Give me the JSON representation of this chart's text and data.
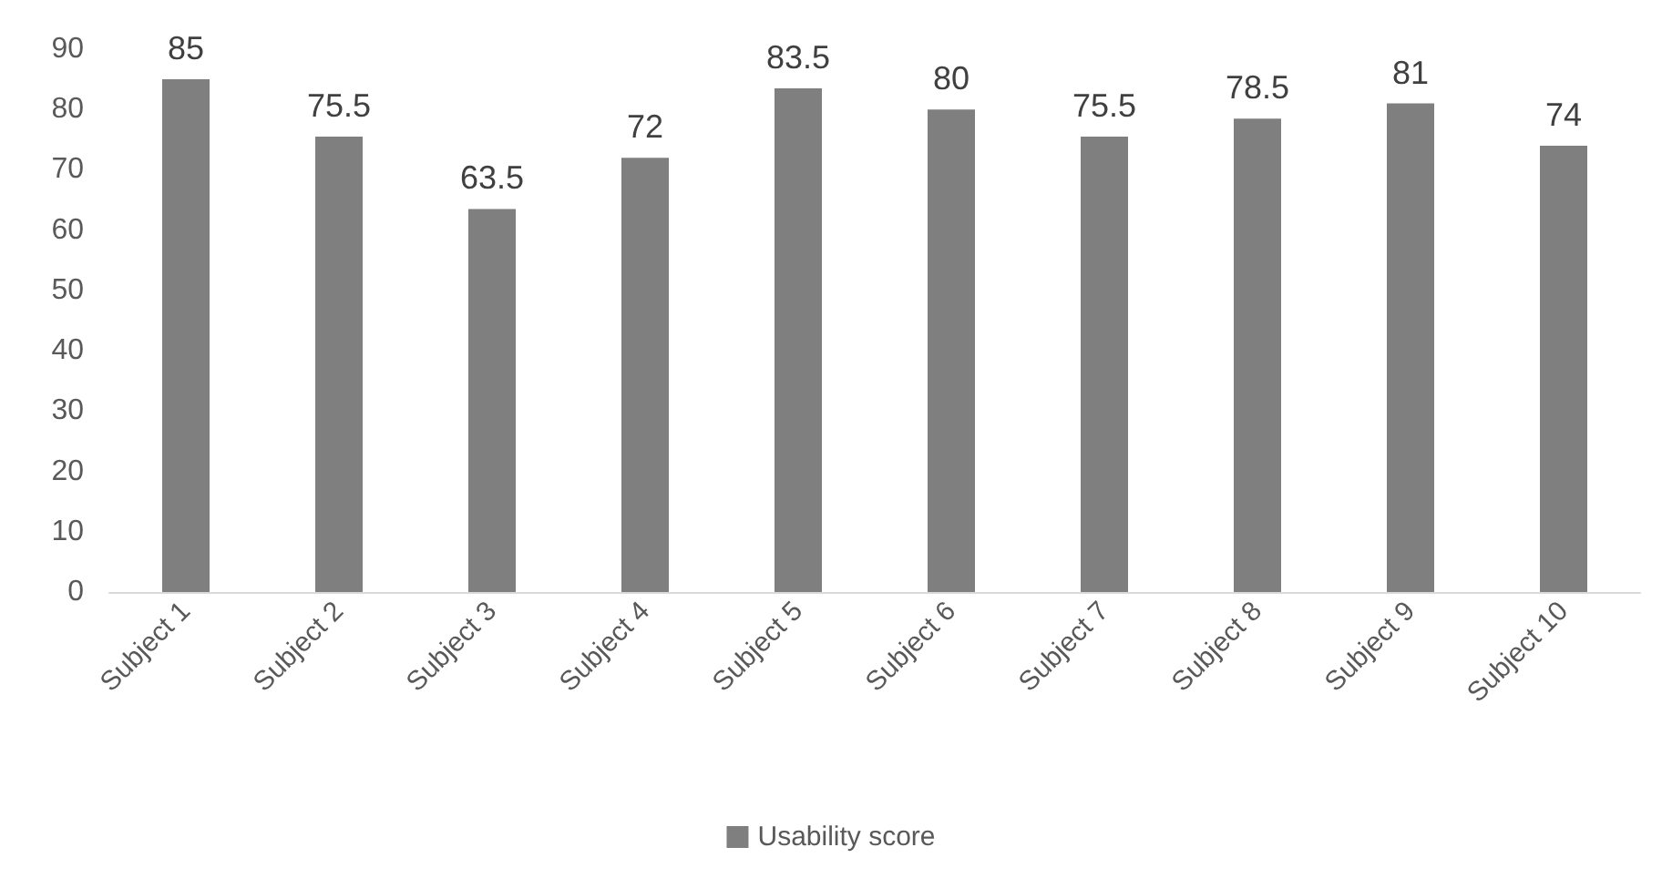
{
  "chart_data": {
    "type": "bar",
    "categories": [
      "Subject 1",
      "Subject 2",
      "Subject 3",
      "Subject 4",
      "Subject 5",
      "Subject 6",
      "Subject 7",
      "Subject 8",
      "Subject 9",
      "Subject 10"
    ],
    "series": [
      {
        "name": "Usability score",
        "color": "#7f7f7f",
        "values": [
          85,
          75.5,
          63.5,
          72,
          83.5,
          80,
          75.5,
          78.5,
          81,
          74
        ]
      }
    ],
    "ylim": [
      0,
      90
    ],
    "yticks": [
      0,
      10,
      20,
      30,
      40,
      50,
      60,
      70,
      80,
      90
    ],
    "grid": false,
    "legend": "bottom",
    "data_labels": true
  }
}
